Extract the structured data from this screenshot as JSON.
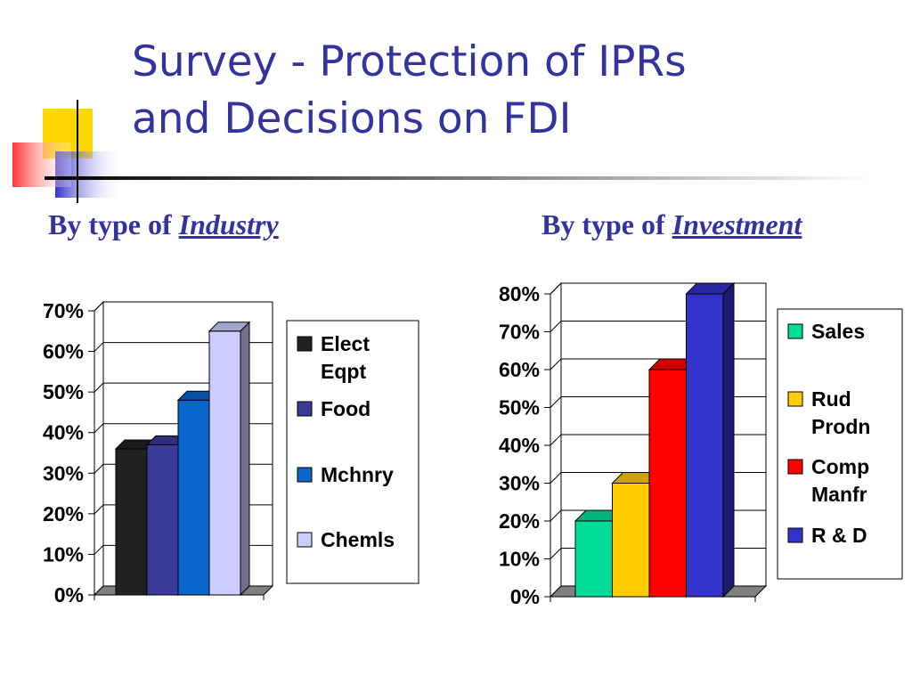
{
  "slide": {
    "title_line1": "Survey - Protection of IPRs",
    "title_line2": "and Decisions on FDI",
    "left_subhead_prefix": "By type of",
    "left_subhead_emph": "Industry",
    "right_subhead_prefix": "By type of",
    "right_subhead_emph": "Investment",
    "colors": {
      "title": "#3333a0",
      "accent_yellow": "#ffd700",
      "accent_blue": "#3333cc",
      "accent_red": "#ff3333"
    }
  },
  "chart_data": [
    {
      "type": "bar",
      "categories": [
        "Elect Eqpt",
        "Food",
        "Mchnry",
        "Chemls"
      ],
      "values": [
        36,
        37,
        48,
        65
      ],
      "colors": [
        "#222222",
        "#3a3a9a",
        "#0a66cc",
        "#ccccff"
      ],
      "legend": [
        [
          "Elect",
          "Eqpt"
        ],
        [
          "Food"
        ],
        [
          "Mchnry"
        ],
        [
          "Chemls"
        ]
      ],
      "legend_placement": "right",
      "ylim": [
        0,
        70
      ],
      "yticks": [
        "0%",
        "10%",
        "20%",
        "30%",
        "40%",
        "50%",
        "60%",
        "70%"
      ],
      "grid": true,
      "style": "3d"
    },
    {
      "type": "bar",
      "categories": [
        "Sales",
        "Rud Prodn",
        "Comp Manfr",
        "R & D"
      ],
      "values": [
        20,
        30,
        60,
        80
      ],
      "colors": [
        "#00dd99",
        "#ffcc00",
        "#ff0000",
        "#3333cc"
      ],
      "legend": [
        [
          "Sales"
        ],
        [
          "Rud",
          "Prodn"
        ],
        [
          "Comp",
          "Manfr"
        ],
        [
          "R & D"
        ]
      ],
      "legend_placement": "right",
      "ylim": [
        0,
        80
      ],
      "yticks": [
        "0%",
        "10%",
        "20%",
        "30%",
        "40%",
        "50%",
        "60%",
        "70%",
        "80%"
      ],
      "grid": true,
      "style": "3d"
    }
  ]
}
